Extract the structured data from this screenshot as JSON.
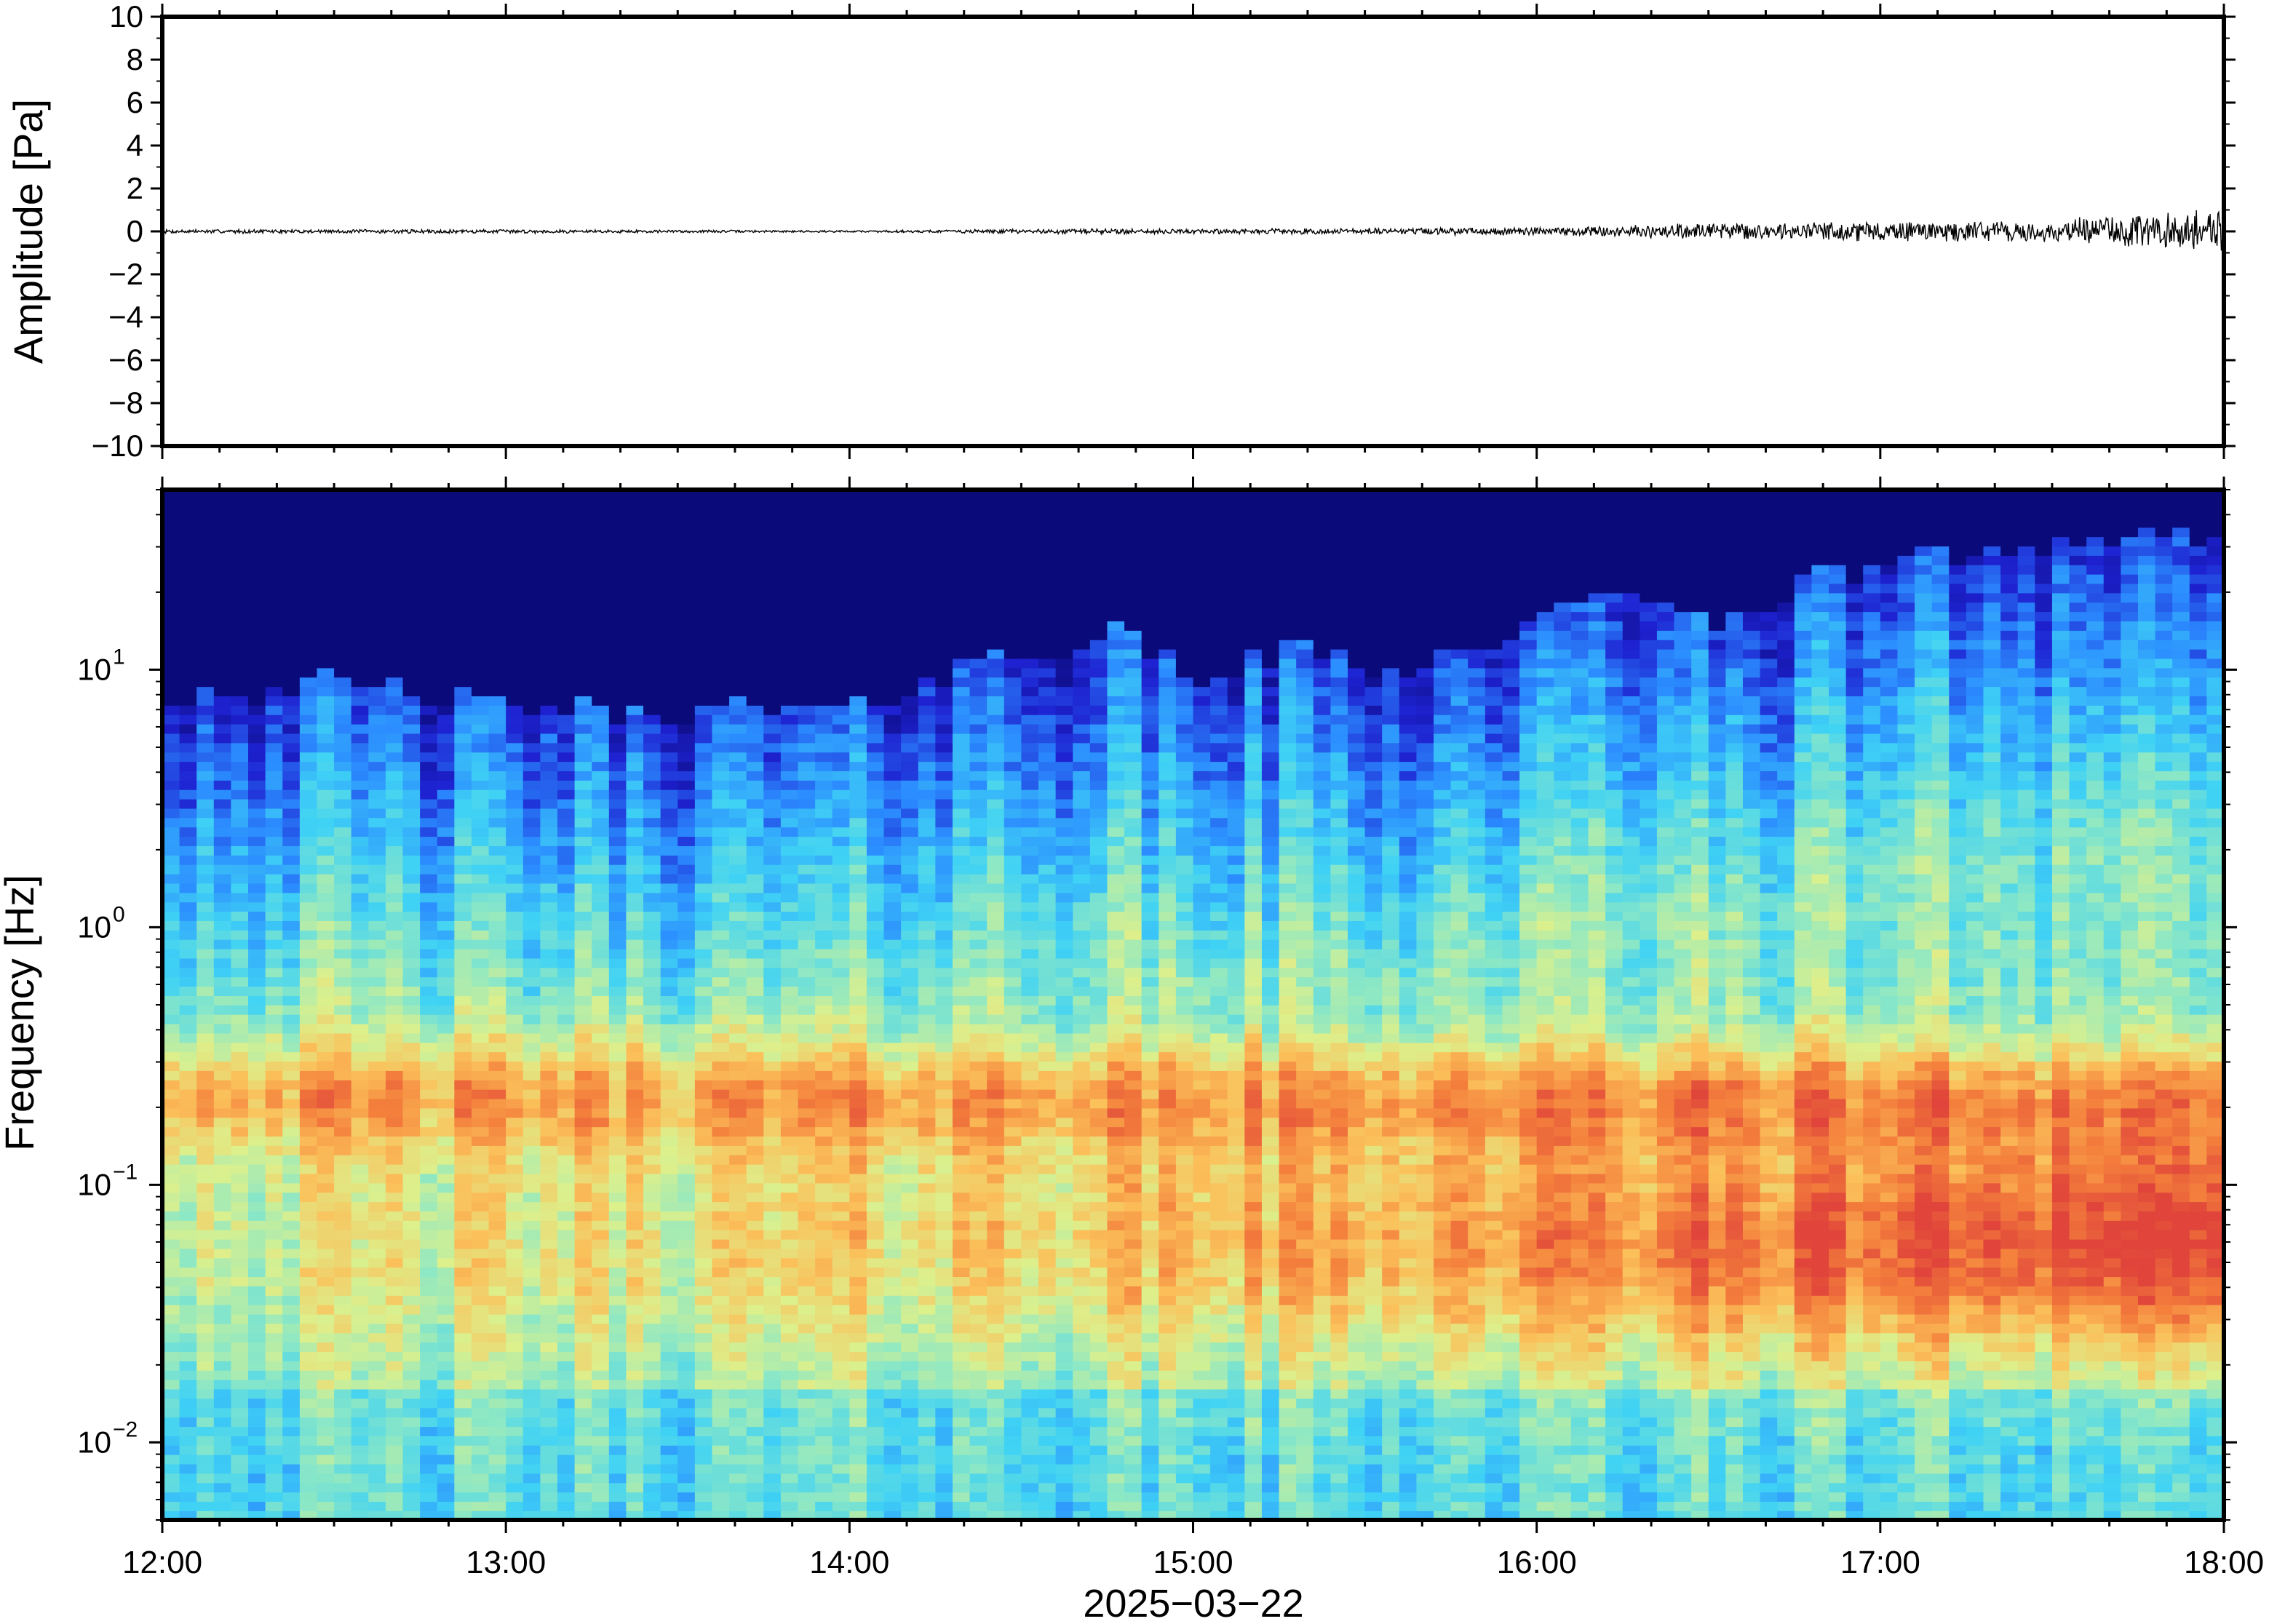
{
  "chart_data": [
    {
      "type": "line",
      "ylabel": "Amplitude [Pa]",
      "ylim": [
        -10,
        10
      ],
      "yticks": [
        10,
        8,
        6,
        4,
        2,
        0,
        -2,
        -4,
        -6,
        -8,
        -10
      ],
      "ytick_labels": [
        "10",
        "8",
        "6",
        "4",
        "2",
        "0",
        "−2",
        "−4",
        "−6",
        "−8",
        "−10"
      ],
      "xlim": [
        "12:00",
        "18:00"
      ],
      "series": [
        {
          "x_hours": [
            12.0,
            13.0,
            14.0,
            14.8,
            15.0,
            16.0,
            16.3,
            16.6,
            16.9,
            17.2,
            17.5,
            17.8,
            18.0
          ],
          "envelope_pa": [
            0.1,
            0.1,
            0.05,
            0.15,
            0.12,
            0.2,
            0.35,
            0.4,
            0.5,
            0.5,
            0.6,
            0.9,
            1.1
          ],
          "peak_pa": 1.4
        }
      ],
      "grid": false,
      "color": "#000000"
    },
    {
      "type": "heatmap",
      "ylabel": "Frequency [Hz]",
      "xlabel": "2025−03−22",
      "x_ticks": [
        "12:00",
        "13:00",
        "14:00",
        "15:00",
        "16:00",
        "17:00",
        "18:00"
      ],
      "xlim": [
        "12:00",
        "18:00"
      ],
      "ylim": [
        0.005,
        50
      ],
      "yscale": "log",
      "yticks": [
        0.01,
        0.1,
        1,
        10
      ],
      "ytick_base": "10",
      "ytick_exponents": [
        "−2",
        "−1",
        "0",
        "1"
      ],
      "colormap": "jet",
      "colormap_stops": [
        "#0b0a7b",
        "#1e22d1",
        "#2b8cff",
        "#3fd2f5",
        "#8ee8c4",
        "#dcf08c",
        "#fbc05a",
        "#f4803c",
        "#e0443a"
      ],
      "relative_level_0_to_1": {
        "ambient_band_0.15_to_0.35_Hz": 0.65,
        "low_freq_0.03_to_0.1_Hz_at_18:00": 0.82,
        "above_10_Hz_before_16:00": 0.0
      },
      "upper_noise_edge_hz_by_hour": [
        [
          12.0,
          8
        ],
        [
          12.5,
          9
        ],
        [
          13.0,
          7
        ],
        [
          13.5,
          7
        ],
        [
          14.0,
          7
        ],
        [
          14.3,
          10
        ],
        [
          14.8,
          14
        ],
        [
          15.0,
          9
        ],
        [
          15.3,
          12
        ],
        [
          15.6,
          10
        ],
        [
          16.0,
          15
        ],
        [
          16.3,
          22
        ],
        [
          16.5,
          14
        ],
        [
          16.7,
          20
        ],
        [
          17.0,
          26
        ],
        [
          17.5,
          32
        ],
        [
          18.0,
          34
        ]
      ],
      "grid": false
    }
  ]
}
